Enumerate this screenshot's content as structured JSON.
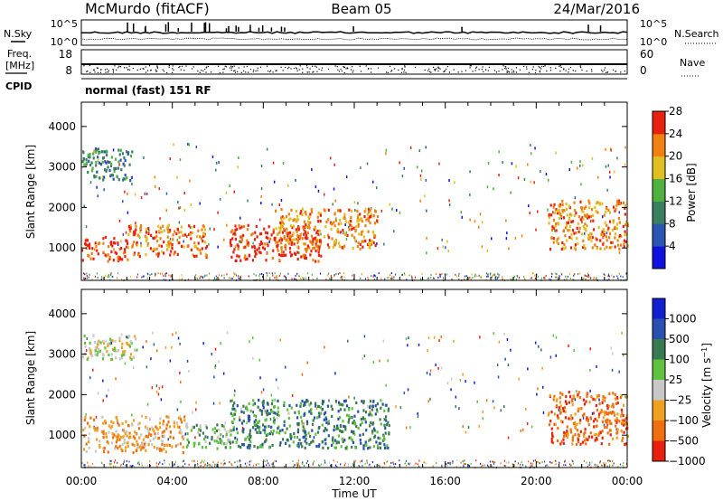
{
  "header": {
    "station": "McMurdo (fitACF)",
    "beam": "Beam 05",
    "date": "24/Mar/2016"
  },
  "top_panel": {
    "left_label": "N.Sky",
    "right_label": "N.Search",
    "left_ticks": [
      "10^5",
      "10^0"
    ],
    "right_ticks": [
      "10^5",
      "10^0"
    ]
  },
  "freq_panel": {
    "label_line1": "Freq.",
    "label_line2": "[MHz]",
    "right_label": "Nave",
    "left_ticks": [
      "18",
      "8"
    ],
    "right_ticks": [
      "60",
      "0"
    ]
  },
  "cpid": {
    "label": "CPID",
    "text": "normal (fast) 151 RF"
  },
  "chart_data": [
    {
      "type": "heatmap",
      "name": "power",
      "title": "",
      "xlabel": "",
      "ylabel": "Slant Range [km]",
      "yticks": [
        "1000",
        "2000",
        "3000",
        "4000"
      ],
      "ylim": [
        200,
        4600
      ],
      "colorbar_label": "Power [dB]",
      "colorbar_ticks": [
        "4",
        "8",
        "12",
        "16",
        "20",
        "24",
        "28"
      ],
      "colorbar_colors": [
        "#1010e0",
        "#2a55b0",
        "#3a8060",
        "#50b040",
        "#e0c020",
        "#f08010",
        "#e82010"
      ],
      "regions": [
        {
          "x0": 0.0,
          "x1": 2.2,
          "y0": 2700,
          "y1": 3500,
          "level": 2
        },
        {
          "x0": 0.0,
          "x1": 2.0,
          "y0": 700,
          "y1": 1300,
          "level": 6
        },
        {
          "x0": 2.0,
          "x1": 5.5,
          "y0": 800,
          "y1": 1600,
          "level": 5
        },
        {
          "x0": 6.5,
          "x1": 10.5,
          "y0": 700,
          "y1": 1600,
          "level": 6
        },
        {
          "x0": 8.5,
          "x1": 13.0,
          "y0": 1000,
          "y1": 2000,
          "level": 5
        },
        {
          "x0": 20.5,
          "x1": 24.0,
          "y0": 1000,
          "y1": 2200,
          "level": 5
        }
      ]
    },
    {
      "type": "heatmap",
      "name": "velocity",
      "title": "",
      "xlabel": "Time UT",
      "ylabel": "Slant Range [km]",
      "xticks": [
        "00:00",
        "04:00",
        "08:00",
        "12:00",
        "16:00",
        "20:00",
        "00:00"
      ],
      "yticks": [
        "1000",
        "2000",
        "3000",
        "4000"
      ],
      "ylim": [
        200,
        4600
      ],
      "colorbar_label": "Velocity [m s^-1]",
      "colorbar_ticks": [
        "1000",
        "500",
        "100",
        "25",
        "−25",
        "−100",
        "−500",
        "−1000"
      ],
      "colorbar_colors": [
        "#1020d0",
        "#2850b0",
        "#3a7a50",
        "#60c040",
        "#c8c8c8",
        "#f0a020",
        "#f07010",
        "#e82010"
      ],
      "regions": [
        {
          "x0": 0.0,
          "x1": 2.5,
          "y0": 2900,
          "y1": 3500,
          "level": 4
        },
        {
          "x0": 0.0,
          "x1": 4.5,
          "y0": 600,
          "y1": 1500,
          "level": 5
        },
        {
          "x0": 4.5,
          "x1": 6.5,
          "y0": 700,
          "y1": 1300,
          "level": 3
        },
        {
          "x0": 6.5,
          "x1": 13.5,
          "y0": 700,
          "y1": 1900,
          "level": 2
        },
        {
          "x0": 20.5,
          "x1": 24.0,
          "y0": 800,
          "y1": 2100,
          "level": 6
        }
      ]
    }
  ]
}
